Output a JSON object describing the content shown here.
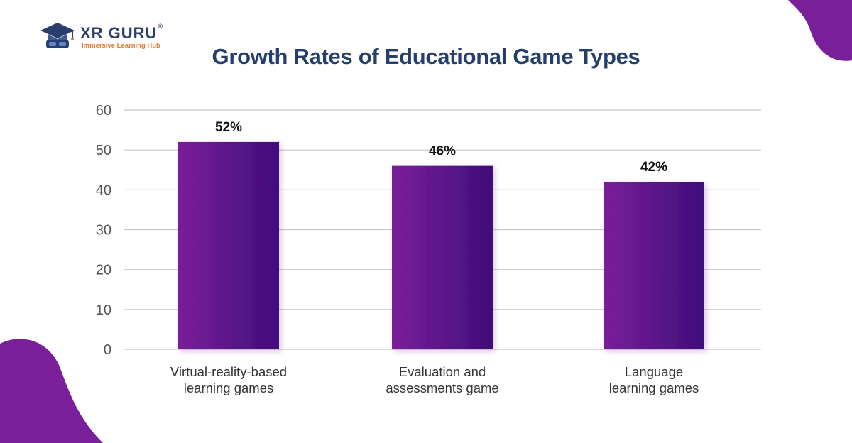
{
  "brand": {
    "name": "XR GURU",
    "registered": "®",
    "tagline": "Immersive Learning Hub"
  },
  "colors": {
    "title": "#243f6e",
    "bar_start": "#7a1f9a",
    "bar_end": "#3f0d7a",
    "blob": "#7a1f9a",
    "grid": "#c8c8c8"
  },
  "chart_data": {
    "type": "bar",
    "title": "Growth Rates of Educational Game Types",
    "categories": [
      [
        "Virtual-reality-based",
        "learning games"
      ],
      [
        "Evaluation and",
        "assessments game"
      ],
      [
        "Language",
        "learning games"
      ]
    ],
    "values": [
      52,
      46,
      42
    ],
    "data_labels": [
      "52%",
      "46%",
      "42%"
    ],
    "yticks": [
      0,
      10,
      20,
      30,
      40,
      50,
      60
    ],
    "ylim": [
      0,
      60
    ],
    "xlabel": "",
    "ylabel": "",
    "grid": true
  }
}
